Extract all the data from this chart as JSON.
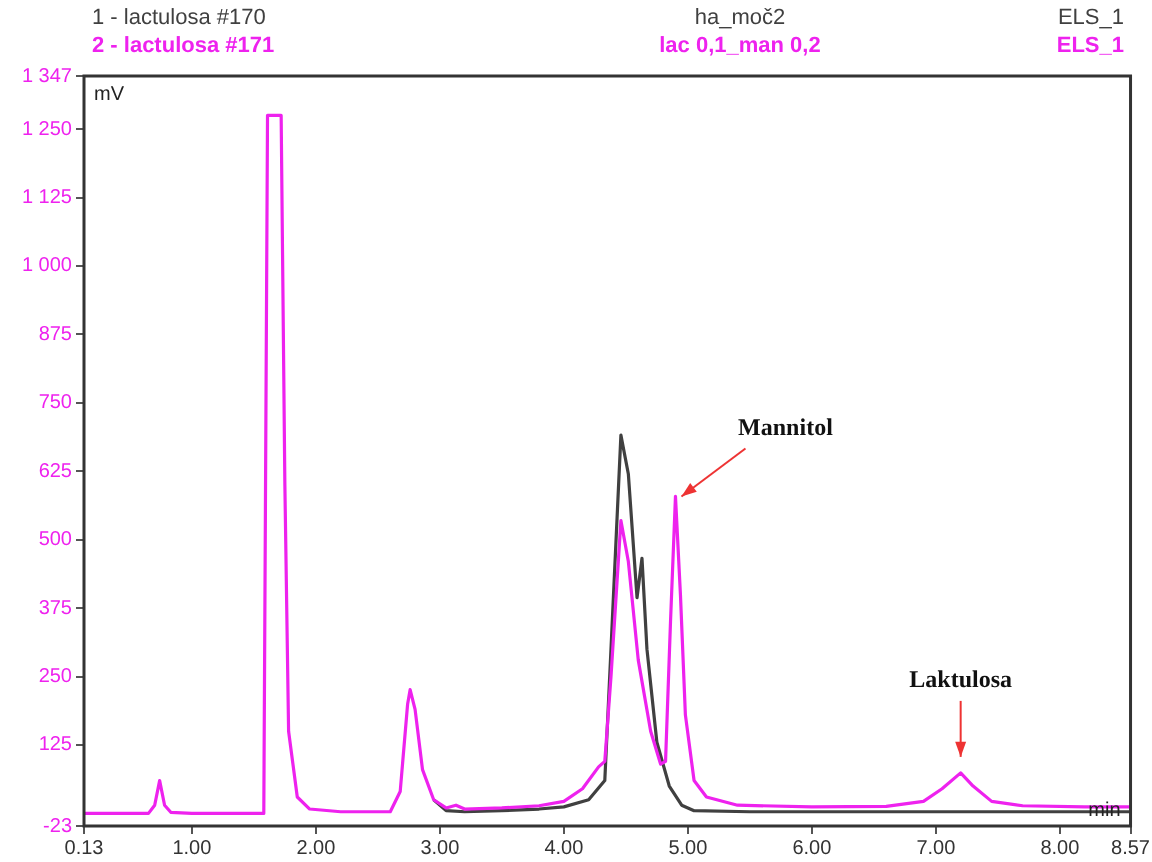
{
  "chart_data": {
    "type": "line",
    "xlabel": "min",
    "ylabel": "mV",
    "xlim": [
      0.13,
      8.57
    ],
    "ylim": [
      -23,
      1347
    ],
    "xticks": [
      0.13,
      {
        "value": 1,
        "label": "1.00"
      },
      {
        "value": 2,
        "label": "2.00"
      },
      {
        "value": 3,
        "label": "3.00"
      },
      {
        "value": 4,
        "label": "4.00"
      },
      {
        "value": 5,
        "label": "5.00"
      },
      {
        "value": 6,
        "label": "6.00"
      },
      {
        "value": 7,
        "label": "7.00"
      },
      {
        "value": 8,
        "label": "8.00"
      },
      8.57
    ],
    "yticks": [
      -23,
      125,
      250,
      375,
      500,
      625,
      750,
      875,
      {
        "value": 1000,
        "label": "1 000"
      },
      {
        "value": 1125,
        "label": "1 125"
      },
      {
        "value": 1250,
        "label": "1 250"
      },
      {
        "value": 1347,
        "label": "1 347"
      }
    ],
    "grid": false,
    "legend": "top",
    "marker": "none",
    "line_style": "solid",
    "series": [
      {
        "name": "1 - lactulosa #170",
        "color": "#404040",
        "x": [
          2.95,
          3.05,
          3.2,
          3.5,
          3.8,
          4.0,
          4.2,
          4.33,
          4.38,
          4.46,
          4.52,
          4.59,
          4.63,
          4.67,
          4.75,
          4.85,
          4.95,
          5.05,
          5.5,
          7.0,
          8.57
        ],
        "values": [
          25,
          5,
          3,
          5,
          8,
          12,
          25,
          60,
          300,
          691,
          620,
          394,
          466,
          300,
          130,
          50,
          15,
          5,
          3,
          3,
          3
        ]
      },
      {
        "name": "2 - lactulosa #171",
        "color": "#ee22ee",
        "x": [
          0.13,
          0.65,
          0.7,
          0.74,
          0.78,
          0.83,
          1.0,
          1.58,
          1.61,
          1.72,
          1.75,
          1.78,
          1.85,
          1.95,
          2.2,
          2.6,
          2.68,
          2.74,
          2.76,
          2.8,
          2.86,
          2.95,
          3.05,
          3.13,
          3.2,
          3.5,
          3.8,
          4.0,
          4.15,
          4.28,
          4.33,
          4.38,
          4.46,
          4.52,
          4.6,
          4.7,
          4.78,
          4.82,
          4.86,
          4.9,
          4.94,
          4.98,
          5.05,
          5.15,
          5.4,
          6.0,
          6.6,
          6.9,
          7.05,
          7.2,
          7.3,
          7.45,
          7.7,
          8.2,
          8.57
        ],
        "values": [
          0,
          0,
          15,
          60,
          15,
          2,
          0,
          0,
          1275,
          1275,
          600,
          150,
          30,
          8,
          3,
          3,
          40,
          200,
          226,
          190,
          80,
          25,
          10,
          15,
          8,
          10,
          14,
          22,
          45,
          85,
          95,
          250,
          535,
          460,
          280,
          150,
          90,
          95,
          350,
          579,
          400,
          180,
          60,
          30,
          15,
          12,
          13,
          22,
          45,
          74,
          50,
          22,
          14,
          12,
          12
        ]
      }
    ],
    "annotations": [
      {
        "text": "Mannitol",
        "x": 4.9,
        "y": 579
      },
      {
        "text": "Laktulosa",
        "x": 7.2,
        "y": 74
      },
      "ha_moč2",
      "ELS_1",
      "lac 0,1_man 0,2",
      "ELS_1"
    ]
  }
}
